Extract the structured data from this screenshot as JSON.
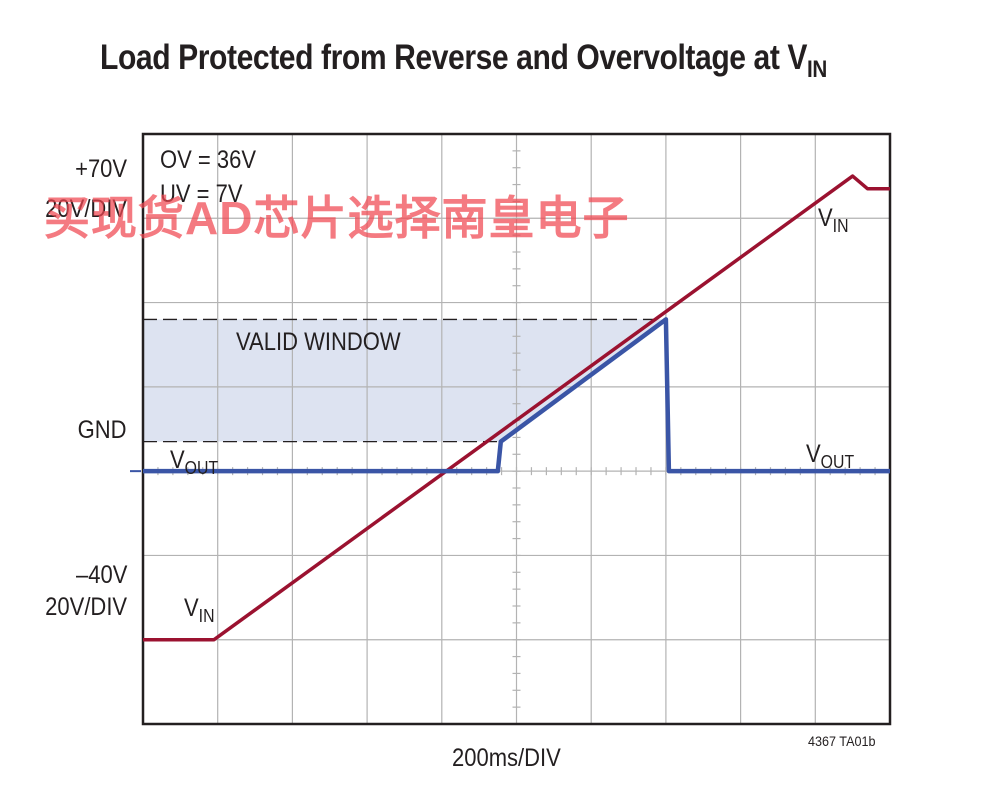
{
  "chart_data": {
    "type": "line",
    "title": "Load Protected from Reverse and Overvoltage at V",
    "title_sub": "IN",
    "xlabel": "200ms/DIV",
    "x_units_per_div": 200,
    "x_range_ms": [
      0,
      2000
    ],
    "y_range_V": [
      -60,
      80
    ],
    "y_units_per_div": 20,
    "grid": true,
    "annotations": {
      "thresholds": [
        "OV = 36V",
        "UV = 7V"
      ],
      "window_label": "VALID WINDOW",
      "scale_top": "+70V",
      "scale_top_div": "20V/DIV",
      "gnd": "GND",
      "scale_bottom": "–40V",
      "scale_bottom_div": "20V/DIV",
      "figure_id": "4367 TA01b"
    },
    "valid_window_V": [
      7,
      36
    ],
    "series": [
      {
        "name": "V",
        "name_sub": "IN",
        "color": "#9b1230",
        "x_ms": [
          0,
          190,
          1900,
          1940,
          2000
        ],
        "y_V": [
          -40,
          -40,
          70,
          67,
          67
        ]
      },
      {
        "name": "V",
        "name_sub": "OUT",
        "color": "#3a55a6",
        "x_ms": [
          0,
          950,
          958,
          1400,
          1408,
          2000
        ],
        "y_V": [
          0,
          0,
          7,
          36,
          0,
          0
        ]
      }
    ]
  },
  "watermark": "买现货AD芯片选择南皇电子",
  "colors": {
    "window_fill": "#dde3f1",
    "grid": "#b3b3b3",
    "frame": "#231f20"
  }
}
